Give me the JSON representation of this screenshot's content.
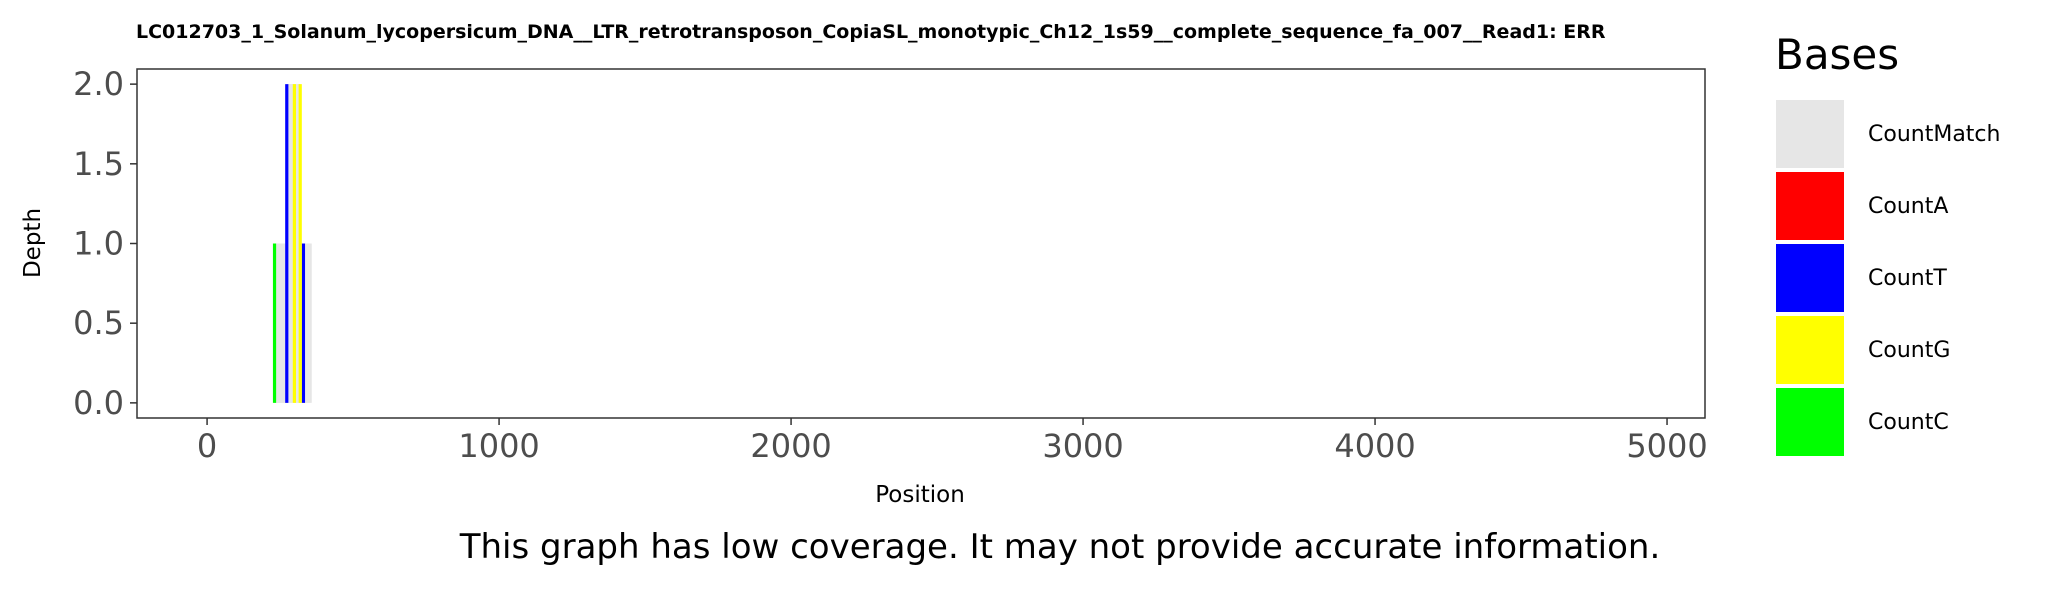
{
  "chart_data": {
    "type": "bar",
    "title": "LC012703_1_Solanum_lycopersicum_DNA__LTR_retrotransposon_CopiaSL_monotypic_Ch12_1s59__complete_sequence_fa_007__Read1: ERR",
    "xlabel": "Position",
    "ylabel": "Depth",
    "xlim": [
      -240,
      5130
    ],
    "ylim": [
      -0.095,
      2.095
    ],
    "x_ticks": [
      "0",
      "1000",
      "2000",
      "3000",
      "4000",
      "5000"
    ],
    "y_ticks": [
      "0.0",
      "0.5",
      "1.0",
      "1.5",
      "2.0"
    ],
    "grid": false,
    "legend": {
      "title": "Bases",
      "position": "right",
      "entries": [
        {
          "name": "CountMatch",
          "color": "#e6e6e6"
        },
        {
          "name": "CountA",
          "color": "#ff0000"
        },
        {
          "name": "CountT",
          "color": "#0000ff"
        },
        {
          "name": "CountG",
          "color": "#ffff00"
        },
        {
          "name": "CountC",
          "color": "#00ff00"
        }
      ]
    },
    "series": [
      {
        "name": "CountMatch",
        "color": "#e6e6e6",
        "points": [
          {
            "x": 235,
            "y": 1
          },
          {
            "x": 238,
            "y": 1
          },
          {
            "x": 241,
            "y": 1
          },
          {
            "x": 245,
            "y": 1
          },
          {
            "x": 248,
            "y": 1
          },
          {
            "x": 252,
            "y": 1
          },
          {
            "x": 256,
            "y": 1
          },
          {
            "x": 260,
            "y": 1
          },
          {
            "x": 264,
            "y": 1
          },
          {
            "x": 268,
            "y": 1
          },
          {
            "x": 277,
            "y": 2
          },
          {
            "x": 281,
            "y": 2
          },
          {
            "x": 285,
            "y": 2
          },
          {
            "x": 289,
            "y": 2
          },
          {
            "x": 293,
            "y": 2
          },
          {
            "x": 297,
            "y": 2
          },
          {
            "x": 303,
            "y": 2
          },
          {
            "x": 307,
            "y": 2
          },
          {
            "x": 311,
            "y": 2
          },
          {
            "x": 315,
            "y": 2
          },
          {
            "x": 322,
            "y": 1
          },
          {
            "x": 326,
            "y": 1
          },
          {
            "x": 333,
            "y": 1
          },
          {
            "x": 337,
            "y": 1
          },
          {
            "x": 341,
            "y": 1
          },
          {
            "x": 345,
            "y": 1
          },
          {
            "x": 349,
            "y": 1
          },
          {
            "x": 353,
            "y": 1
          }
        ]
      },
      {
        "name": "CountA",
        "color": "#ff0000",
        "points": []
      },
      {
        "name": "CountT",
        "color": "#0000ff",
        "points": [
          {
            "x": 273,
            "y": 2
          },
          {
            "x": 330,
            "y": 1
          }
        ]
      },
      {
        "name": "CountG",
        "color": "#ffff00",
        "points": [
          {
            "x": 299,
            "y": 2
          },
          {
            "x": 319,
            "y": 2
          }
        ]
      },
      {
        "name": "CountC",
        "color": "#00ff00",
        "points": [
          {
            "x": 231,
            "y": 1
          }
        ]
      }
    ]
  },
  "footer": {
    "note": "This graph has low coverage. It may not provide accurate information."
  }
}
